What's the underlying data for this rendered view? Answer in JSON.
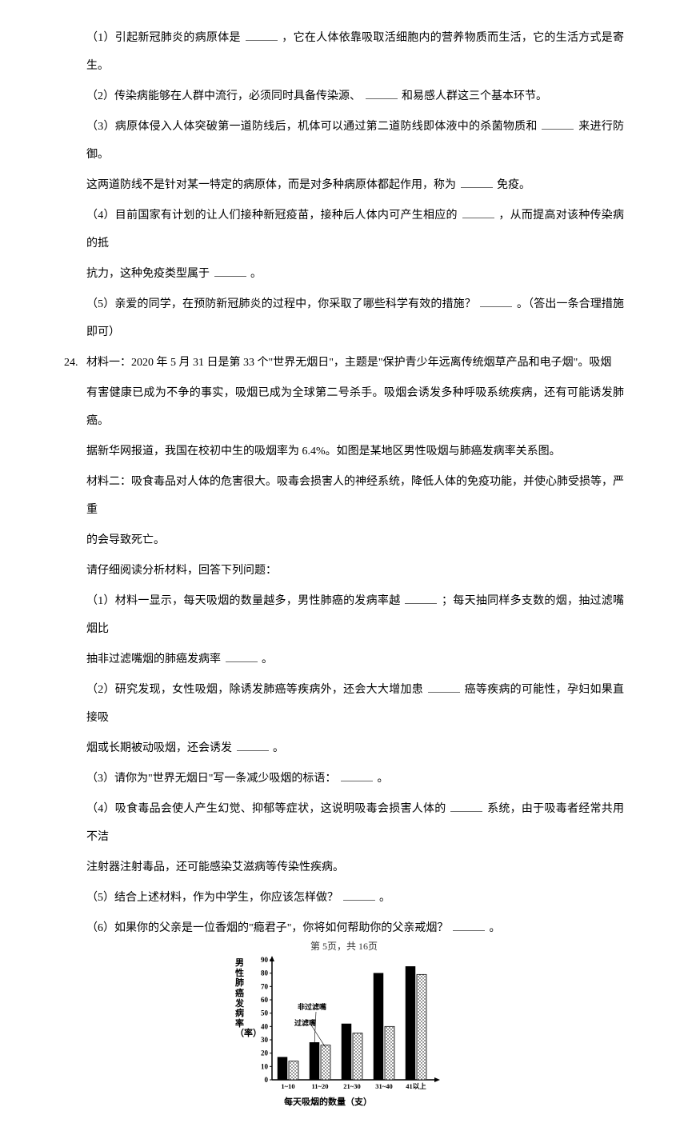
{
  "q23": {
    "p1": "（1）引起新冠肺炎的病原体是",
    "p1b": "，它在人体依靠吸取活细胞内的营养物质而生活，它的生活方式是寄生。",
    "p2": "（2）传染病能够在人群中流行，必须同时具备传染源、",
    "p2b": "和易感人群这三个基本环节。",
    "p3": "（3）病原体侵入人体突破第一道防线后，机体可以通过第二道防线即体液中的杀菌物质和",
    "p3b": "来进行防御。",
    "p3c": "这两道防线不是针对某一特定的病原体，而是对多种病原体都起作用，称为",
    "p3d": "免疫。",
    "p4": "（4）目前国家有计划的让人们接种新冠疫苗，接种后人体内可产生相应的",
    "p4b": "，从而提高对该种传染病的抵",
    "p4c": "抗力，这种免疫类型属于",
    "p4d": "。",
    "p5": "（5）亲爱的同学，在预防新冠肺炎的过程中，你采取了哪些科学有效的措施？",
    "p5b": "。（答出一条合理措施即可）"
  },
  "q24": {
    "num": "24.",
    "m1a": "材料一：2020 年 5 月 31 日是第 33 个\"世界无烟日\"，主题是\"保护青少年远离传统烟草产品和电子烟\"。吸烟",
    "m1b": "有害健康已成为不争的事实，吸烟已成为全球第二号杀手。吸烟会诱发多种呼吸系统疾病，还有可能诱发肺癌。",
    "m1c": "据新华网报道，我国在校初中生的吸烟率为 6.4%。如图是某地区男性吸烟与肺癌发病率关系图。",
    "m2a": "材料二：吸食毒品对人体的危害很大。吸毒会损害人的神经系统，降低人体的免疫功能，并使心肺受损等，严重",
    "m2b": "的会导致死亡。",
    "intro": "请仔细阅读分析材料，回答下列问题：",
    "p1a": "（1）材料一显示，每天吸烟的数量越多，男性肺癌的发病率越",
    "p1b": "；每天抽同样多支数的烟，抽过滤嘴烟比",
    "p1c": "抽非过滤嘴烟的肺癌发病率",
    "p1d": "。",
    "p2a": "（2）研究发现，女性吸烟，除诱发肺癌等疾病外，还会大大增加患",
    "p2b": "癌等疾病的可能性，孕妇如果直接吸",
    "p2c": "烟或长期被动吸烟，还会诱发",
    "p2d": "。",
    "p3": "（3）请你为\"世界无烟日\"写一条减少吸烟的标语：",
    "p3b": "。",
    "p4a": "（4）吸食毒品会使人产生幻觉、抑郁等症状，这说明吸毒会损害人体的",
    "p4b": "系统，由于吸毒者经常共用不洁",
    "p4c": "注射器注射毒品，还可能感染艾滋病等传染性疾病。",
    "p5": "（5）结合上述材料，作为中学生，你应该怎样做？",
    "p5b": "。",
    "p6": "（6）如果你的父亲是一位香烟的\"瘾君子\"，你将如何帮助你的父亲戒烟？",
    "p6b": "。"
  },
  "chart": {
    "type": "bar",
    "y_label": "男性肺癌发病率（率）",
    "x_label": "每天吸烟的数量（支）",
    "categories": [
      "1~10",
      "11~20",
      "21~30",
      "31~40",
      "41以上"
    ],
    "series": [
      {
        "name": "非过滤嘴",
        "values": [
          17,
          28,
          42,
          80,
          85
        ],
        "fill": "#000000"
      },
      {
        "name": "过滤嘴",
        "values": [
          14,
          26,
          35,
          40,
          79
        ],
        "fill": "url(#dotPattern)"
      }
    ],
    "ylim": [
      0,
      90
    ],
    "ytick_step": 10,
    "yticks": [
      0,
      10,
      20,
      30,
      40,
      50,
      60,
      70,
      80,
      90
    ],
    "bar_colors": {
      "unfiltered": "#000000",
      "filtered_pattern": "dots"
    },
    "background_color": "#ffffff",
    "axis_color": "#000000",
    "legend_labels": {
      "unfiltered": "非过滤嘴",
      "filtered": "过滤嘴"
    },
    "bar_group_width": 0.7,
    "title_fontsize": 11,
    "label_fontsize": 10
  },
  "footer": {
    "text": "第 5页，共 16页"
  }
}
